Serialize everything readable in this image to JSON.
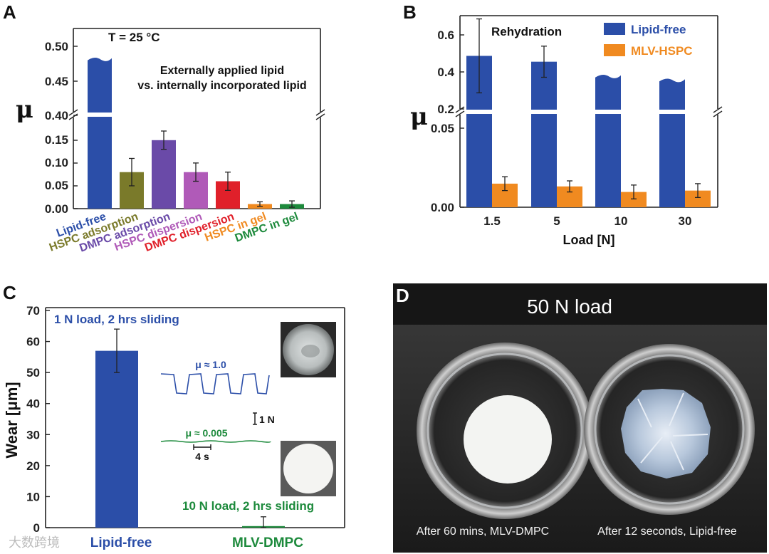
{
  "panels": {
    "a": {
      "letter": "A"
    },
    "b": {
      "letter": "B"
    },
    "c": {
      "letter": "C"
    },
    "d": {
      "letter": "D"
    }
  },
  "chart_data": [
    {
      "panel": "A",
      "type": "bar",
      "ylabel": "μ",
      "annotation_temp": "T = 25 °C",
      "annotation_line1": "Externally applied lipid",
      "annotation_line2": "vs. internally incorporated lipid",
      "categories": [
        "Lipid-free",
        "HSPC adsorption",
        "DMPC adsorption",
        "HSPC dispersion",
        "DMPC dispersion",
        "HSPC in gel",
        "DMPC in gel"
      ],
      "values": [
        0.49,
        0.08,
        0.15,
        0.08,
        0.06,
        0.01,
        0.01
      ],
      "errors": [
        null,
        0.03,
        0.02,
        0.02,
        0.02,
        0.005,
        0.007
      ],
      "colors": [
        "#2b4ea8",
        "#7a7a2a",
        "#6a4aa8",
        "#b05ab8",
        "#e0202a",
        "#f08a20",
        "#1d8a3c"
      ],
      "axis_break": true,
      "ylim_lower": [
        0,
        0.17
      ],
      "ylim_upper": [
        0.4,
        0.52
      ],
      "yticks_lower": [
        "0.00",
        "0.05",
        "0.10",
        "0.15"
      ],
      "yticks_upper": [
        "0.40",
        "0.45",
        "0.50"
      ]
    },
    {
      "panel": "B",
      "type": "bar",
      "ylabel": "μ",
      "xlabel": "Load [N]",
      "annotation": "Rehydration",
      "categories": [
        "1.5",
        "5",
        "10",
        "30"
      ],
      "series": [
        {
          "name": "Lipid-free",
          "values": [
            0.48,
            0.45,
            0.38,
            0.36
          ],
          "errors": [
            0.19,
            0.08,
            null,
            null
          ],
          "color": "#2b4ea8"
        },
        {
          "name": "MLV-HSPC",
          "values": [
            0.017,
            0.015,
            0.011,
            0.012
          ],
          "errors": [
            0.005,
            0.004,
            0.005,
            0.005
          ],
          "color": "#f08a20"
        }
      ],
      "axis_break": true,
      "ylim_lower": [
        0,
        0.057
      ],
      "ylim_upper": [
        0.2,
        0.65
      ],
      "yticks_lower": [
        "0.00",
        "0.05"
      ],
      "yticks_upper": [
        "0.2",
        "0.4",
        "0.6"
      ]
    },
    {
      "panel": "C",
      "type": "bar",
      "ylabel": "Wear [μm]",
      "categories": [
        "Lipid-free",
        "MLV-DMPC"
      ],
      "values": [
        57,
        0.5
      ],
      "errors": [
        7,
        3
      ],
      "colors": [
        "#2b4ea8",
        "#1d8a3c"
      ],
      "ylim": [
        0,
        70
      ],
      "yticks": [
        "0",
        "10",
        "20",
        "30",
        "40",
        "50",
        "60",
        "70"
      ],
      "annotation_top": "1 N load, 2 hrs sliding",
      "annotation_bottom": "10 N load, 2 hrs sliding",
      "inset_mu_high": "μ ≈ 1.0",
      "inset_mu_low": "μ ≈ 0.005",
      "inset_force_scale": "1 N",
      "inset_time_scale": "4 s"
    }
  ],
  "photo_d": {
    "title": "50 N load",
    "caption_left": "After 60 mins, MLV-DMPC",
    "caption_right": "After 12 seconds, Lipid-free"
  },
  "watermark": "大数跨境"
}
